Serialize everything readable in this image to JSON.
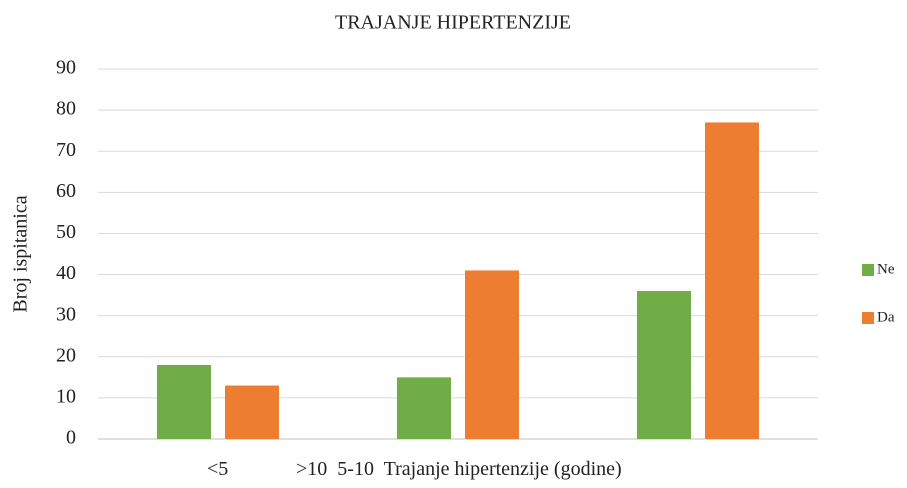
{
  "chart_data": {
    "type": "bar",
    "title": "TRAJANJE HIPERTENZIJE",
    "x_label": "Trajanje hipertenzije (godine)",
    "y_label": "Broj ispitanica",
    "categories": [
      "<5",
      ">10",
      "5-10"
    ],
    "series": [
      {
        "name": "Ne",
        "color": "#70ad47",
        "values": [
          18,
          15,
          36
        ]
      },
      {
        "name": "Da",
        "color": "#ed7d31",
        "values": [
          13,
          41,
          77
        ]
      }
    ],
    "ylim": [
      0,
      90
    ],
    "yticks": [
      0,
      10,
      20,
      30,
      40,
      50,
      60,
      70,
      80,
      90
    ],
    "grid": true,
    "legend": "right"
  }
}
